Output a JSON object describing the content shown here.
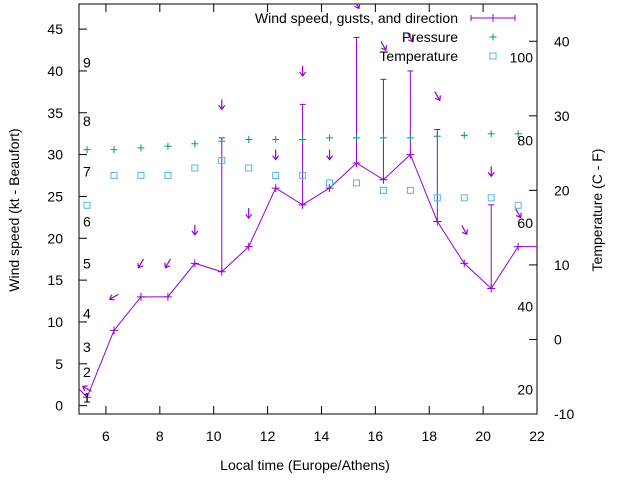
{
  "chart_data": {
    "type": "line",
    "xlabel": "Local time (Europe/Athens)",
    "ylabel": "Wind speed (kt - Beaufort)",
    "y2label": "Temperature (C - F)",
    "xlim": [
      5,
      22
    ],
    "ylim": [
      -1,
      48
    ],
    "y2lim": [
      -10,
      45
    ],
    "xticks": [
      6,
      8,
      10,
      12,
      14,
      16,
      18,
      20,
      22
    ],
    "yticks": [
      0,
      5,
      10,
      15,
      20,
      25,
      30,
      35,
      40,
      45
    ],
    "y2ticks": [
      -10,
      0,
      10,
      20,
      30,
      40
    ],
    "beaufort_labels": [
      {
        "label": "1",
        "y": 1
      },
      {
        "label": "2",
        "y": 4
      },
      {
        "label": "3",
        "y": 7
      },
      {
        "label": "4",
        "y": 11
      },
      {
        "label": "5",
        "y": 17
      },
      {
        "label": "6",
        "y": 22
      },
      {
        "label": "7",
        "y": 28
      },
      {
        "label": "8",
        "y": 34
      },
      {
        "label": "9",
        "y": 41
      }
    ],
    "fahrenheit_labels": [
      {
        "label": "20",
        "temp_c": -6.7
      },
      {
        "label": "40",
        "temp_c": 4.4
      },
      {
        "label": "60",
        "temp_c": 15.6
      },
      {
        "label": "80",
        "temp_c": 26.7
      },
      {
        "label": "100",
        "temp_c": 37.8
      }
    ],
    "legend_placement": "top-right",
    "series": [
      {
        "name": "Wind speed, gusts, and direction",
        "color": "#9400d3",
        "points": [
          {
            "x": 5.3,
            "speed": 1,
            "gust": 1,
            "dir": 120
          },
          {
            "x": 6.3,
            "speed": 9,
            "gust": 9,
            "dir": 60
          },
          {
            "x": 7.3,
            "speed": 13,
            "gust": 13,
            "dir": 30
          },
          {
            "x": 8.3,
            "speed": 13,
            "gust": 13,
            "dir": 30
          },
          {
            "x": 9.3,
            "speed": 17,
            "gust": 17,
            "dir": 0
          },
          {
            "x": 10.3,
            "speed": 16,
            "gust": 32,
            "dir": 0
          },
          {
            "x": 11.3,
            "speed": 19,
            "gust": 19,
            "dir": 0
          },
          {
            "x": 12.3,
            "speed": 26,
            "gust": 26,
            "dir": 0
          },
          {
            "x": 13.3,
            "speed": 24,
            "gust": 36,
            "dir": 0
          },
          {
            "x": 14.3,
            "speed": 26,
            "gust": 26,
            "dir": 0
          },
          {
            "x": 15.3,
            "speed": 29,
            "gust": 44,
            "dir": 330
          },
          {
            "x": 16.3,
            "speed": 27,
            "gust": 39,
            "dir": 330
          },
          {
            "x": 17.3,
            "speed": 30,
            "gust": 40,
            "dir": 330
          },
          {
            "x": 18.3,
            "speed": 22,
            "gust": 33,
            "dir": 330
          },
          {
            "x": 19.3,
            "speed": 17,
            "gust": 17,
            "dir": 330
          },
          {
            "x": 20.3,
            "speed": 14,
            "gust": 24,
            "dir": 0
          },
          {
            "x": 21.3,
            "speed": 19,
            "gust": 19,
            "dir": 330
          }
        ],
        "arrow_positions": [
          {
            "x": 5.3,
            "y": 2
          },
          {
            "x": 6.3,
            "y": 13
          },
          {
            "x": 7.3,
            "y": 17
          },
          {
            "x": 8.3,
            "y": 17
          },
          {
            "x": 9.3,
            "y": 21
          },
          {
            "x": 10.3,
            "y": 36
          },
          {
            "x": 11.3,
            "y": 23
          },
          {
            "x": 12.3,
            "y": 30
          },
          {
            "x": 13.3,
            "y": 40
          },
          {
            "x": 14.3,
            "y": 30
          },
          {
            "x": 15.3,
            "y": 48
          },
          {
            "x": 16.3,
            "y": 43
          },
          {
            "x": 17.3,
            "y": 44
          },
          {
            "x": 18.3,
            "y": 37
          },
          {
            "x": 19.3,
            "y": 21
          },
          {
            "x": 20.3,
            "y": 28
          },
          {
            "x": 21.3,
            "y": 23
          }
        ]
      },
      {
        "name": "Pressure",
        "color": "#009e73",
        "x": [
          5.3,
          6.3,
          7.3,
          8.3,
          9.3,
          10.3,
          11.3,
          12.3,
          13.3,
          14.3,
          15.3,
          16.3,
          17.3,
          18.3,
          19.3,
          20.3,
          21.3
        ],
        "y": [
          30.6,
          30.6,
          30.8,
          31.0,
          31.3,
          31.6,
          31.8,
          31.8,
          31.8,
          32.0,
          32.0,
          32.0,
          32.0,
          32.2,
          32.3,
          32.5,
          32.5
        ]
      },
      {
        "name": "Temperature",
        "color": "#56b4e9",
        "x": [
          5.3,
          6.3,
          7.3,
          8.3,
          9.3,
          10.3,
          11.3,
          12.3,
          13.3,
          14.3,
          15.3,
          16.3,
          17.3,
          18.3,
          19.3,
          20.3,
          21.3
        ],
        "y": [
          18,
          22,
          22,
          22,
          23,
          24,
          23,
          22,
          22,
          21,
          21,
          20,
          20,
          19,
          19,
          19,
          18
        ]
      }
    ]
  }
}
